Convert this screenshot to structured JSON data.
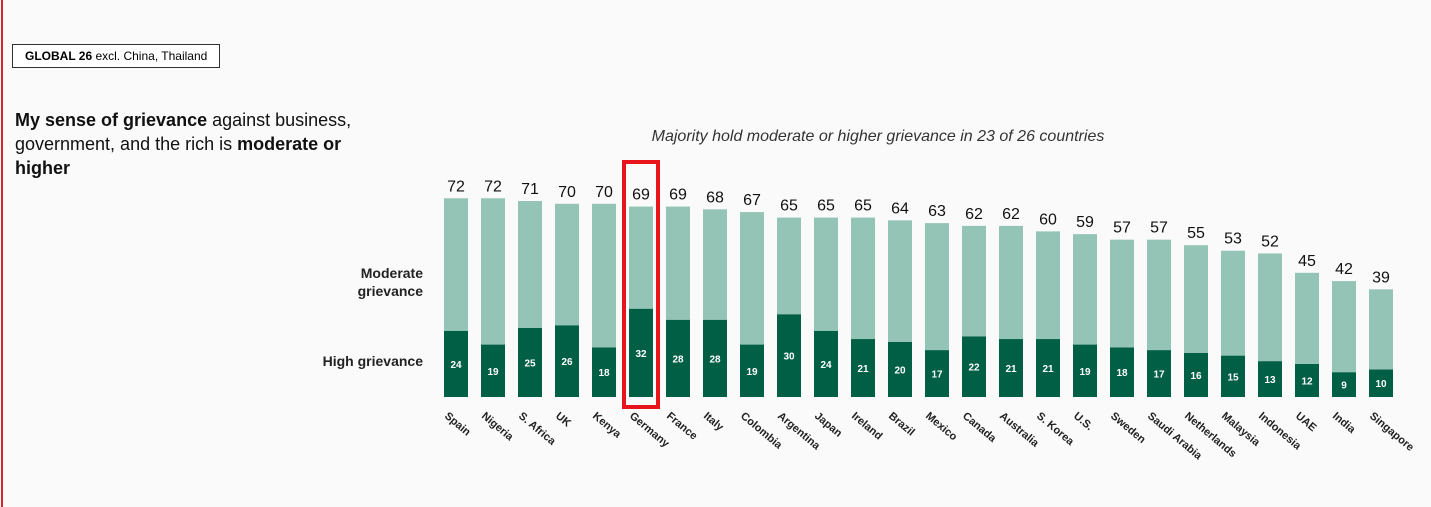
{
  "header": {
    "bold": "GLOBAL 26",
    "rest": " excl. China, Thailand"
  },
  "title": {
    "parts": [
      "My sense of grievance",
      " against business, government, and the rich is ",
      "moderate or higher"
    ]
  },
  "chart_data": {
    "type": "stacked_bar",
    "subtitle": "Majority hold moderate or higher grievance in 23 of 26 countries",
    "categories": [
      "Spain",
      "Nigeria",
      "S. Africa",
      "UK",
      "Kenya",
      "Germany",
      "France",
      "Italy",
      "Colombia",
      "Argentina",
      "Japan",
      "Ireland",
      "Brazil",
      "Mexico",
      "Canada",
      "Australia",
      "S. Korea",
      "U.S.",
      "Sweden",
      "Saudi Arabia",
      "Netherlands",
      "Malaysia",
      "Indonesia",
      "UAE",
      "India",
      "Singapore"
    ],
    "series": [
      {
        "name": "High grievance",
        "color": "#005f45",
        "values": [
          24,
          19,
          25,
          26,
          18,
          32,
          28,
          28,
          19,
          30,
          24,
          21,
          20,
          17,
          22,
          21,
          21,
          19,
          18,
          17,
          16,
          15,
          13,
          12,
          9,
          10
        ]
      },
      {
        "name": "Moderate grievance",
        "color": "#93c4b5",
        "values": [
          48,
          53,
          46,
          44,
          52,
          37,
          41,
          40,
          48,
          35,
          41,
          44,
          44,
          46,
          40,
          41,
          39,
          40,
          39,
          40,
          39,
          38,
          39,
          33,
          33,
          29
        ]
      }
    ],
    "totals": [
      72,
      72,
      71,
      70,
      70,
      69,
      69,
      68,
      67,
      65,
      65,
      65,
      64,
      63,
      62,
      62,
      60,
      59,
      57,
      57,
      55,
      53,
      52,
      45,
      42,
      39
    ],
    "highlight_category": "Germany",
    "highlight_color": "#e8141b"
  }
}
